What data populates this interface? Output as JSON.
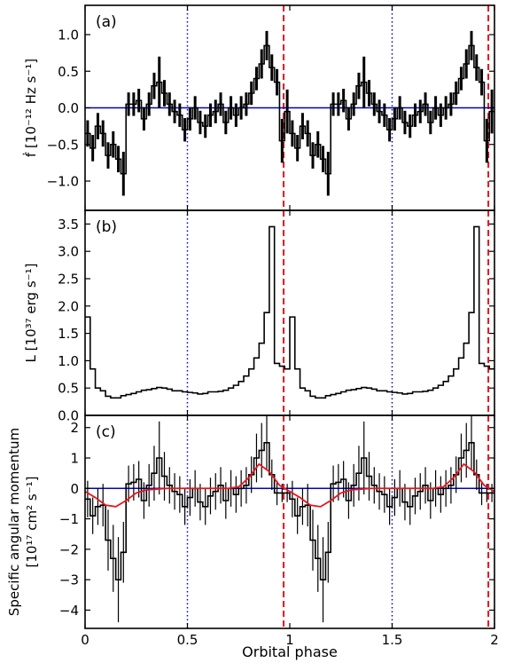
{
  "figure": {
    "xlabel": "Orbital phase",
    "x_ticks": [
      "0",
      "0.5",
      "1",
      "1.5",
      "2"
    ],
    "x_tick_values": [
      0,
      0.5,
      1,
      1.5,
      2
    ],
    "xlim": [
      0,
      2
    ],
    "colors": {
      "step": "#000000",
      "zero_line": "#0000cc",
      "dotted_lines": "#0000cc",
      "dashed_lines": "#e8141c",
      "model_curve": "#e8141c"
    },
    "dotted_vlines_x": [
      0.5,
      1.5
    ],
    "dashed_vlines_x": [
      0.97,
      1.97
    ]
  },
  "chart_data": [
    {
      "type": "line",
      "panel_label": "(a)",
      "ylabel": "ḟ [10⁻¹² Hz s⁻¹]",
      "ylim": [
        -1.4,
        1.4
      ],
      "y_ticks": [
        -1.0,
        -0.5,
        0.0,
        0.5,
        1.0
      ],
      "y_tick_labels": [
        "−1.0",
        "−0.5",
        "0.0",
        "0.5",
        "1.0"
      ],
      "reference_line_y": 0,
      "bin_width": 0.025,
      "values": [
        -0.35,
        -0.55,
        -0.25,
        -0.35,
        -0.65,
        -0.5,
        -0.7,
        -0.9,
        0.05,
        0.05,
        0.1,
        -0.15,
        0.05,
        0.3,
        0.35,
        0.2,
        0.05,
        -0.05,
        -0.1,
        -0.3,
        -0.15,
        0.0,
        -0.2,
        -0.25,
        -0.1,
        -0.05,
        0.05,
        -0.2,
        0.0,
        -0.1,
        0.0,
        0.05,
        0.2,
        0.4,
        0.6,
        0.85,
        0.55,
        0.35,
        -0.45,
        -0.05
      ],
      "errors": [
        0.18,
        0.18,
        0.18,
        0.18,
        0.18,
        0.18,
        0.18,
        0.3,
        0.16,
        0.16,
        0.16,
        0.16,
        0.16,
        0.18,
        0.35,
        0.18,
        0.16,
        0.16,
        0.16,
        0.16,
        0.16,
        0.16,
        0.16,
        0.16,
        0.16,
        0.16,
        0.16,
        0.16,
        0.16,
        0.16,
        0.16,
        0.16,
        0.16,
        0.16,
        0.2,
        0.2,
        0.18,
        0.18,
        0.3,
        0.3
      ]
    },
    {
      "type": "line",
      "panel_label": "(b)",
      "ylabel": "L [10³⁷ erg s⁻¹]",
      "ylim": [
        0,
        3.75
      ],
      "y_ticks": [
        0.0,
        0.5,
        1.0,
        1.5,
        2.0,
        2.5,
        3.0,
        3.5
      ],
      "y_tick_labels": [
        "0.0",
        "0.5",
        "1.0",
        "1.5",
        "2.0",
        "2.5",
        "3.0",
        "3.5"
      ],
      "bin_width": 0.025,
      "values": [
        1.8,
        0.85,
        0.5,
        0.45,
        0.35,
        0.32,
        0.32,
        0.36,
        0.38,
        0.4,
        0.43,
        0.46,
        0.47,
        0.49,
        0.51,
        0.5,
        0.48,
        0.45,
        0.45,
        0.43,
        0.42,
        0.41,
        0.39,
        0.4,
        0.43,
        0.43,
        0.44,
        0.46,
        0.5,
        0.55,
        0.62,
        0.72,
        0.85,
        1.05,
        1.32,
        1.88,
        3.45,
        0.95,
        0.9,
        0.85
      ]
    },
    {
      "type": "line",
      "panel_label": "(c)",
      "ylabel": [
        "Specific angular momentum",
        "[10¹⁷ cm² s⁻¹]"
      ],
      "ylim": [
        -4.6,
        2.4
      ],
      "y_ticks": [
        -4,
        -3,
        -2,
        -1,
        0,
        1,
        2
      ],
      "y_tick_labels": [
        "−4",
        "−3",
        "−2",
        "−1",
        "0",
        "1",
        "2"
      ],
      "reference_line_y": 0,
      "bin_width": 0.025,
      "values": [
        -0.35,
        -0.9,
        -0.6,
        -0.55,
        -1.7,
        -2.3,
        -3.0,
        -2.1,
        0.15,
        0.2,
        0.3,
        -0.4,
        0.1,
        0.5,
        1.0,
        0.4,
        0.1,
        -0.1,
        -0.2,
        -0.6,
        -0.3,
        0.0,
        -0.45,
        -0.6,
        -0.25,
        -0.1,
        0.1,
        -0.4,
        0.0,
        -0.2,
        0.0,
        0.1,
        0.45,
        1.0,
        1.25,
        1.5,
        0.45,
        -0.15,
        -0.15,
        -0.15
      ],
      "errors": [
        0.6,
        0.6,
        0.6,
        0.7,
        1.0,
        1.1,
        1.4,
        1.0,
        0.6,
        0.6,
        0.6,
        0.6,
        0.7,
        0.9,
        1.2,
        0.8,
        0.6,
        0.6,
        0.6,
        0.6,
        0.6,
        0.6,
        0.6,
        0.6,
        0.6,
        0.6,
        0.6,
        0.6,
        0.6,
        0.6,
        0.6,
        0.6,
        0.6,
        0.8,
        0.9,
        0.9,
        0.5,
        0.4,
        0.3,
        0.3
      ],
      "model_curve": {
        "x": [
          0.0,
          0.05,
          0.1,
          0.15,
          0.2,
          0.25,
          0.3,
          0.4,
          0.5,
          0.6,
          0.7,
          0.75,
          0.8,
          0.85,
          0.9,
          0.95,
          1.0
        ],
        "y": [
          -0.1,
          -0.3,
          -0.55,
          -0.6,
          -0.4,
          -0.15,
          -0.05,
          0.0,
          0.0,
          0.0,
          0.0,
          0.05,
          0.35,
          0.8,
          0.55,
          0.1,
          -0.1
        ]
      }
    }
  ]
}
